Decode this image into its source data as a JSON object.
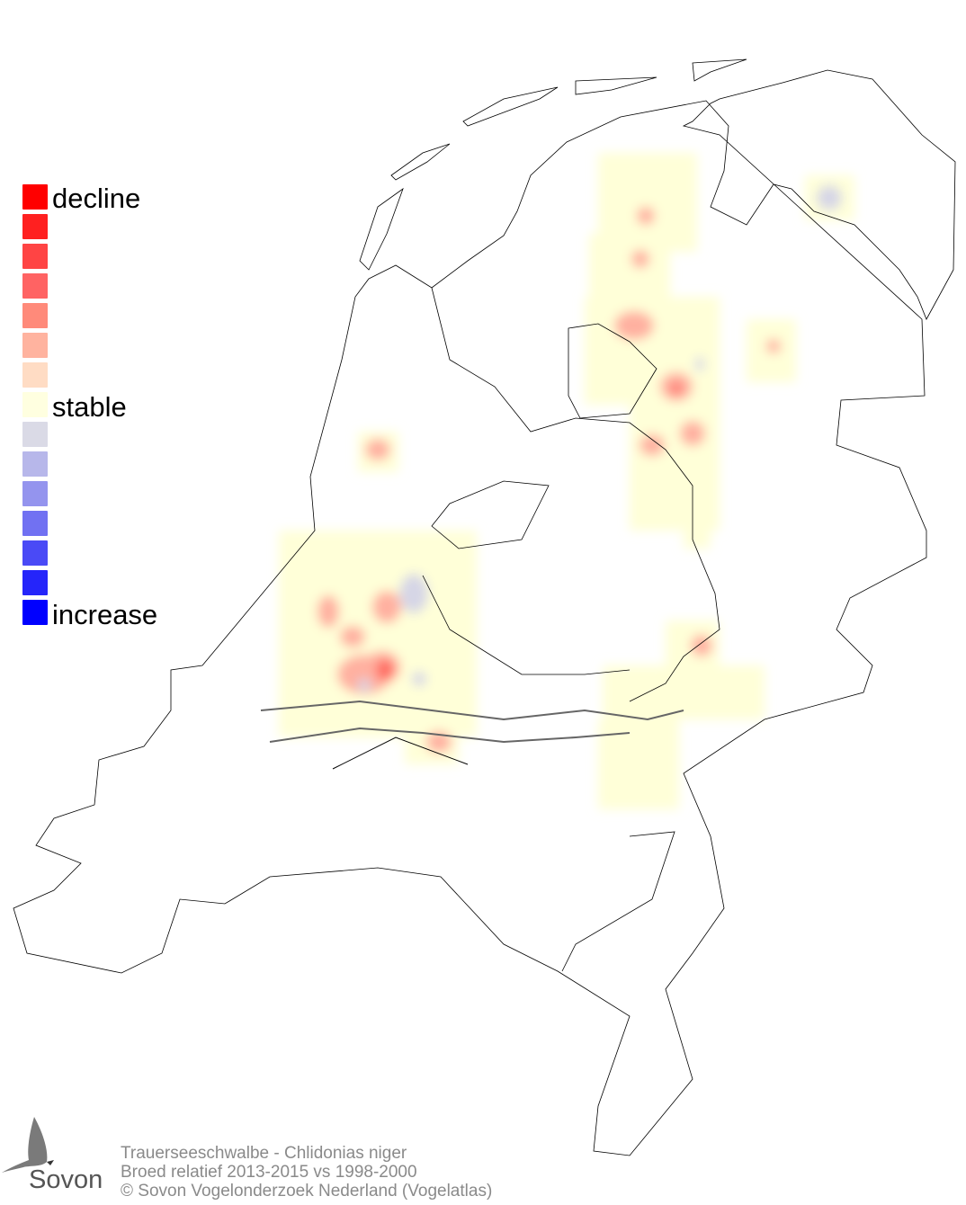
{
  "legend": {
    "labels": {
      "top": "decline",
      "middle": "stable",
      "bottom": "increase"
    },
    "colors": [
      "#ff0000",
      "#ff2020",
      "#ff4444",
      "#ff6363",
      "#ff8a7a",
      "#ffb39f",
      "#ffdcc4",
      "#ffffe0",
      "#dadae6",
      "#b7b7ea",
      "#9494ee",
      "#7171f2",
      "#4a4af6",
      "#2525fa",
      "#0000ff"
    ]
  },
  "footer": {
    "species": "Trauerseeschwalbe - Chlidonias niger",
    "period": "Broed relatief 2013-2015 vs 1998-2000",
    "copyright": "© Sovon Vogelonderzoek Nederland (Vogelatlas)"
  },
  "logo": {
    "text": "Sovon"
  }
}
